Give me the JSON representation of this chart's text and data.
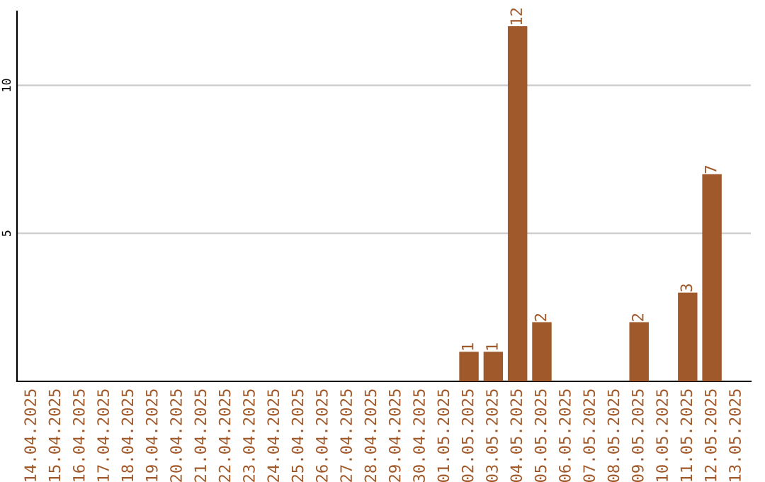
{
  "chart_data": {
    "type": "bar",
    "categories": [
      "14.04.2025",
      "15.04.2025",
      "16.04.2025",
      "17.04.2025",
      "18.04.2025",
      "19.04.2025",
      "20.04.2025",
      "21.04.2025",
      "22.04.2025",
      "23.04.2025",
      "24.04.2025",
      "25.04.2025",
      "26.04.2025",
      "27.04.2025",
      "28.04.2025",
      "29.04.2025",
      "30.04.2025",
      "01.05.2025",
      "02.05.2025",
      "03.05.2025",
      "04.05.2025",
      "05.05.2025",
      "06.05.2025",
      "07.05.2025",
      "08.05.2025",
      "09.05.2025",
      "10.05.2025",
      "11.05.2025",
      "12.05.2025",
      "13.05.2025"
    ],
    "values": [
      0,
      0,
      0,
      0,
      0,
      0,
      0,
      0,
      0,
      0,
      0,
      0,
      0,
      0,
      0,
      0,
      0,
      0,
      1,
      1,
      12,
      2,
      0,
      0,
      0,
      2,
      0,
      3,
      7,
      0
    ],
    "value_labels": [
      null,
      null,
      null,
      null,
      null,
      null,
      null,
      null,
      null,
      null,
      null,
      null,
      null,
      null,
      null,
      null,
      null,
      null,
      "1",
      "1",
      "12",
      "2",
      null,
      null,
      null,
      "2",
      null,
      "3",
      "7",
      null
    ],
    "color": "#a0592a",
    "ylim": [
      0,
      12.5
    ],
    "yticks": [
      5,
      10
    ],
    "grid": "y",
    "legend": false
  }
}
